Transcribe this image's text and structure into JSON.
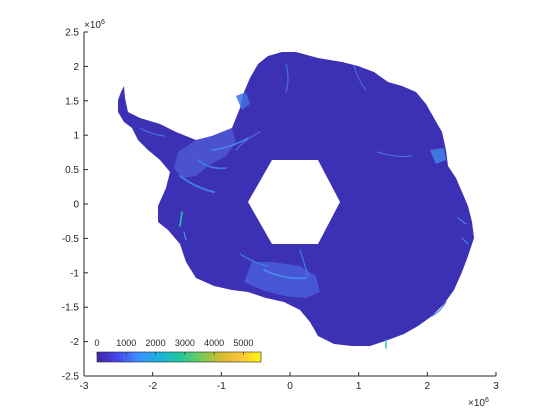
{
  "map": {
    "x_multiplier": "×10",
    "x_multiplier_exp": "6",
    "y_multiplier": "×10",
    "y_multiplier_exp": "6",
    "x_ticks": [
      "-3",
      "-2",
      "-1",
      "0",
      "1",
      "2",
      "3"
    ],
    "y_ticks": [
      "2.5",
      "2",
      "1.5",
      "1",
      "0.5",
      "0",
      "-0.5",
      "-1",
      "-1.5",
      "-2",
      "-2.5"
    ],
    "colors": {
      "ice_base": "#3c30b4",
      "ice_shelf": "#4454d8",
      "fast_flow": "#3f7fe6",
      "axis": "#262626",
      "background": "#ffffff"
    }
  },
  "colorbar": {
    "labels": [
      "0",
      "1000",
      "2000",
      "3000",
      "4000",
      "5000"
    ],
    "colormap": [
      "#3e26a8",
      "#4746eb",
      "#3e8ffe",
      "#1bb0de",
      "#22c5a0",
      "#6bcd5f",
      "#d0ba30",
      "#fec438",
      "#f9fb0e"
    ]
  }
}
